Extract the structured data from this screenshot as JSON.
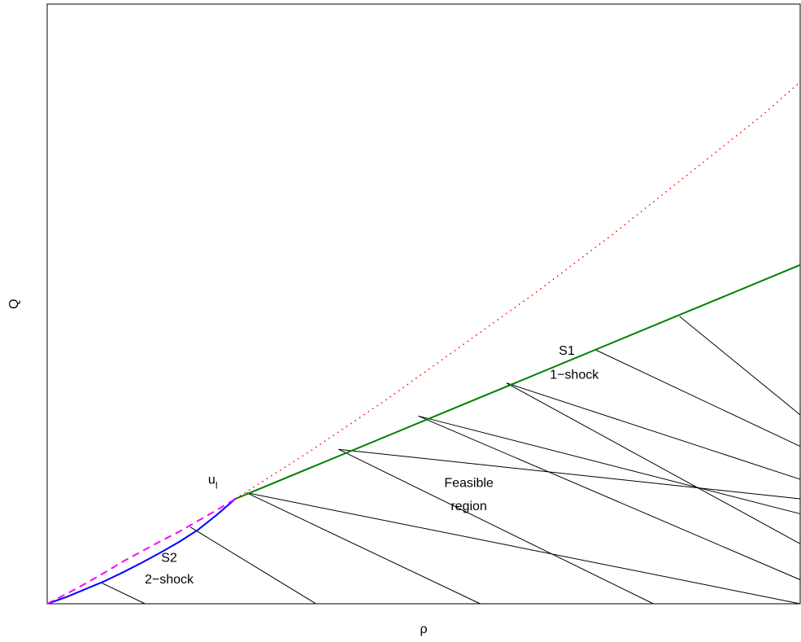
{
  "chart_data": {
    "type": "line",
    "title": "",
    "xlabel": "ρ",
    "ylabel": "Q",
    "xlim": [
      0,
      1
    ],
    "ylim": [
      0,
      1
    ],
    "grid": false,
    "legend": "none",
    "series": [
      {
        "id": "s1",
        "color": "#008000",
        "style": "solid",
        "points": [
          [
            0.25,
            0.175
          ],
          [
            1.0,
            0.565
          ]
        ]
      },
      {
        "id": "s2",
        "color": "#0000ff",
        "style": "solid",
        "points": [
          [
            0.0,
            0.0
          ],
          [
            0.025,
            0.011
          ],
          [
            0.05,
            0.024
          ],
          [
            0.075,
            0.037
          ],
          [
            0.1,
            0.052
          ],
          [
            0.125,
            0.068
          ],
          [
            0.15,
            0.085
          ],
          [
            0.175,
            0.103
          ],
          [
            0.2,
            0.123
          ],
          [
            0.225,
            0.148
          ],
          [
            0.25,
            0.175
          ]
        ]
      },
      {
        "id": "dashed",
        "color": "#ff00ff",
        "style": "dashed",
        "points": [
          [
            0.0,
            0.0
          ],
          [
            0.025,
            0.016
          ],
          [
            0.05,
            0.033
          ],
          [
            0.075,
            0.051
          ],
          [
            0.1,
            0.07
          ],
          [
            0.125,
            0.087
          ],
          [
            0.15,
            0.104
          ],
          [
            0.175,
            0.12
          ],
          [
            0.2,
            0.138
          ],
          [
            0.225,
            0.156
          ],
          [
            0.25,
            0.175
          ]
        ]
      },
      {
        "id": "dotted",
        "color": "#ff0000",
        "style": "dotted",
        "points": [
          [
            0.25,
            0.175
          ],
          [
            0.35,
            0.255
          ],
          [
            0.45,
            0.34
          ],
          [
            0.55,
            0.43
          ],
          [
            0.65,
            0.52
          ],
          [
            0.75,
            0.615
          ],
          [
            0.85,
            0.715
          ],
          [
            0.95,
            0.815
          ],
          [
            1.0,
            0.87
          ]
        ]
      }
    ],
    "hatch": {
      "color": "#000000",
      "lines": [
        [
          [
            0.265,
            0.185
          ],
          [
            1.0,
            0.0
          ]
        ],
        [
          [
            0.387,
            0.2575
          ],
          [
            1.0,
            0.175
          ]
        ],
        [
          [
            0.493,
            0.313
          ],
          [
            1.0,
            0.15
          ]
        ],
        [
          [
            0.61,
            0.368
          ],
          [
            1.0,
            0.2075
          ]
        ],
        [
          [
            0.728,
            0.4235
          ],
          [
            1.0,
            0.2625
          ]
        ],
        [
          [
            0.84,
            0.479
          ],
          [
            1.0,
            0.315
          ]
        ],
        [
          [
            0.19,
            0.128
          ],
          [
            0.357,
            0.0
          ]
        ],
        [
          [
            0.072,
            0.035
          ],
          [
            0.13,
            0.0
          ]
        ],
        [
          [
            0.265,
            0.185
          ],
          [
            0.575,
            0.0
          ]
        ],
        [
          [
            0.387,
            0.2575
          ],
          [
            0.805,
            0.0
          ]
        ],
        [
          [
            0.493,
            0.313
          ],
          [
            1.0,
            0.04
          ]
        ],
        [
          [
            0.61,
            0.368
          ],
          [
            1.0,
            0.1
          ]
        ]
      ]
    },
    "annotations": [
      {
        "id": "ul",
        "text": "u",
        "sub": "l",
        "x": 0.22,
        "y": 0.2
      },
      {
        "id": "s1",
        "text": "S1",
        "x": 0.69,
        "y": 0.415
      },
      {
        "id": "shock1",
        "text": "1−shock",
        "x": 0.7,
        "y": 0.375
      },
      {
        "id": "feasible",
        "text": "Feasible",
        "x": 0.56,
        "y": 0.195
      },
      {
        "id": "region",
        "text": "region",
        "x": 0.56,
        "y": 0.156
      },
      {
        "id": "s2",
        "text": "S2",
        "x": 0.162,
        "y": 0.07
      },
      {
        "id": "shock2",
        "text": "2−shock",
        "x": 0.162,
        "y": 0.034
      }
    ]
  }
}
